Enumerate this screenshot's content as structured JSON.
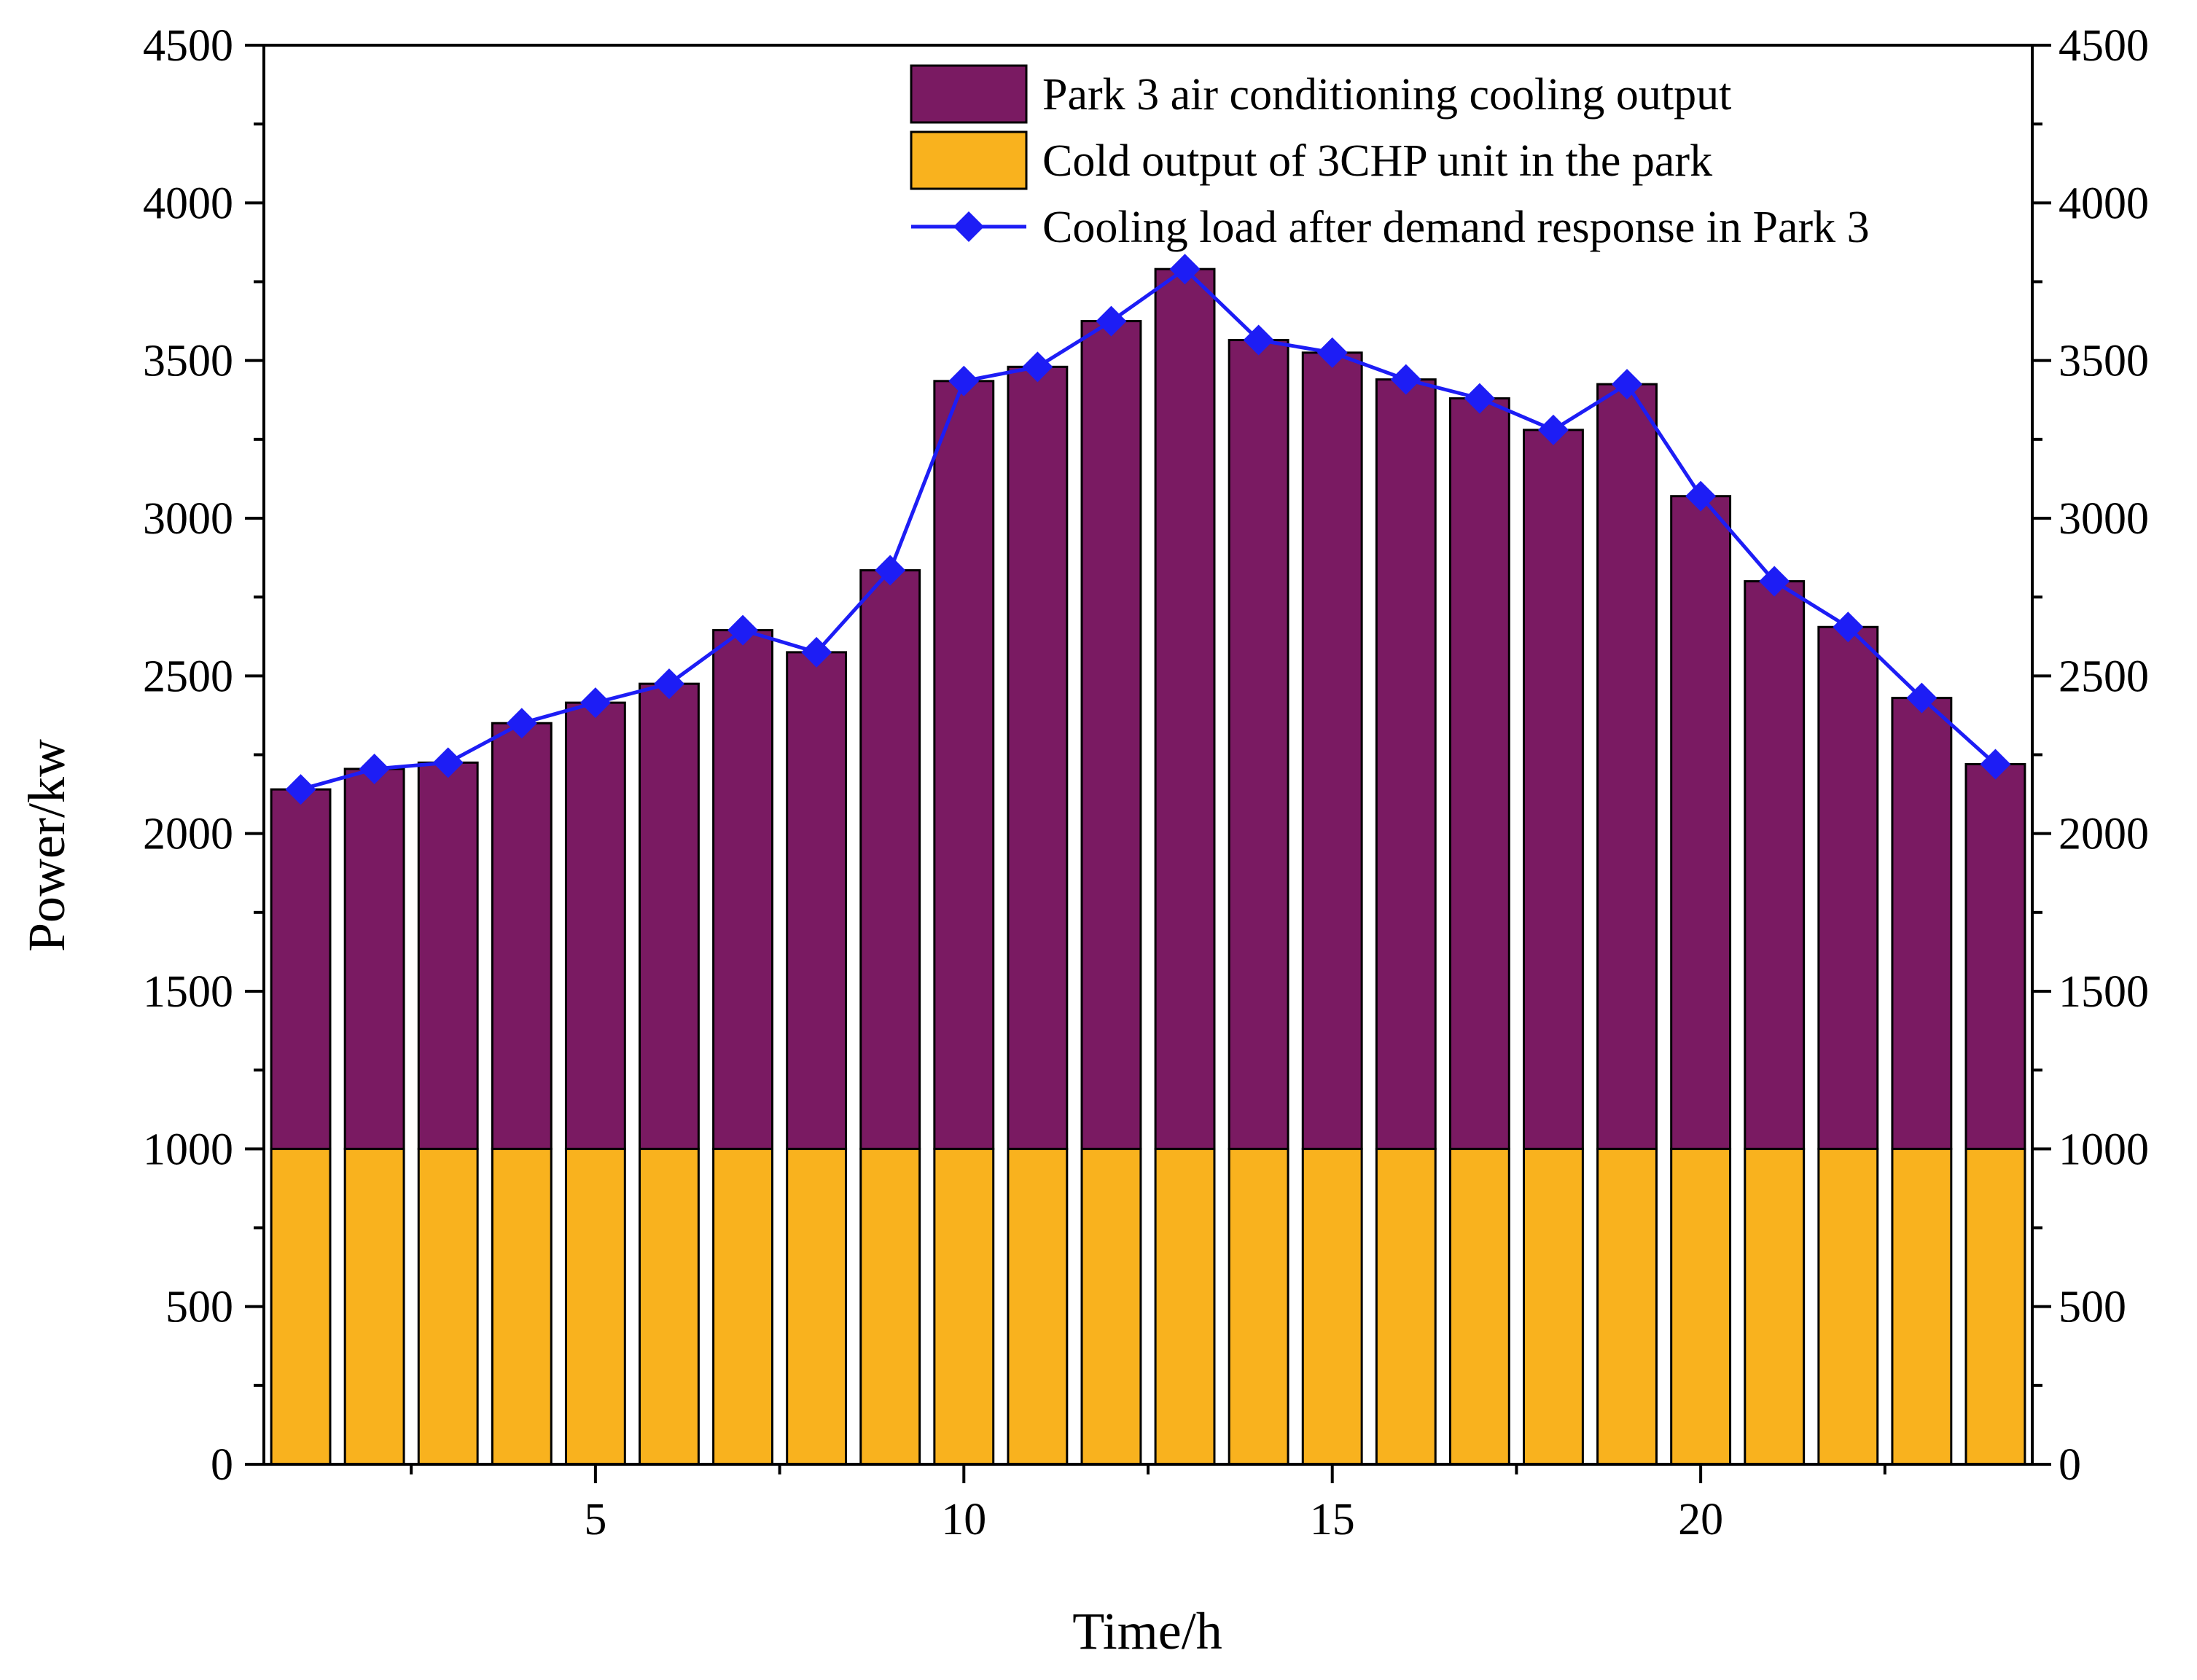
{
  "chart_data": {
    "type": "bar",
    "stacked": true,
    "title": "",
    "xlabel": "Time/h",
    "ylabel": "Power/kw",
    "xlim": [
      0.5,
      24.5
    ],
    "ylim": [
      0,
      4500
    ],
    "x_ticks": [
      5,
      10,
      15,
      20
    ],
    "x_minor_ticks": [
      2.5,
      7.5,
      12.5,
      17.5,
      22.5
    ],
    "y_ticks": [
      0,
      500,
      1000,
      1500,
      2000,
      2500,
      3000,
      3500,
      4000,
      4500
    ],
    "right_axis_ticks": [
      0,
      500,
      1000,
      1500,
      2000,
      2500,
      3000,
      3500,
      4000,
      4500
    ],
    "grid": false,
    "legend_position": "top-right",
    "categories": [
      1,
      2,
      3,
      4,
      5,
      6,
      7,
      8,
      9,
      10,
      11,
      12,
      13,
      14,
      15,
      16,
      17,
      18,
      19,
      20,
      21,
      22,
      23,
      24
    ],
    "series": [
      {
        "name": "Cold output of 3CHP unit in the park",
        "kind": "bar",
        "color": "#F9B21E",
        "values": [
          1000,
          1000,
          1000,
          1000,
          1000,
          1000,
          1000,
          1000,
          1000,
          1000,
          1000,
          1000,
          1000,
          1000,
          1000,
          1000,
          1000,
          1000,
          1000,
          1000,
          1000,
          1000,
          1000,
          1000
        ]
      },
      {
        "name": "Park 3 air conditioning cooling output",
        "kind": "bar",
        "color": "#7A1A62",
        "values": [
          1140,
          1205,
          1225,
          1350,
          1415,
          1475,
          1645,
          1575,
          1835,
          2435,
          2480,
          2625,
          2790,
          2565,
          2525,
          2440,
          2380,
          2280,
          2425,
          2070,
          1800,
          1655,
          1430,
          1220
        ]
      },
      {
        "name": "Cooling load after demand response in Park 3",
        "kind": "line",
        "color": "#1D1DF5",
        "marker": "diamond",
        "values": [
          2140,
          2205,
          2225,
          2350,
          2415,
          2475,
          2645,
          2575,
          2835,
          3435,
          3480,
          3625,
          3790,
          3565,
          3525,
          3440,
          3380,
          3280,
          3425,
          3070,
          2800,
          2655,
          2430,
          2220
        ]
      }
    ],
    "legend_order": [
      1,
      0,
      2
    ]
  }
}
